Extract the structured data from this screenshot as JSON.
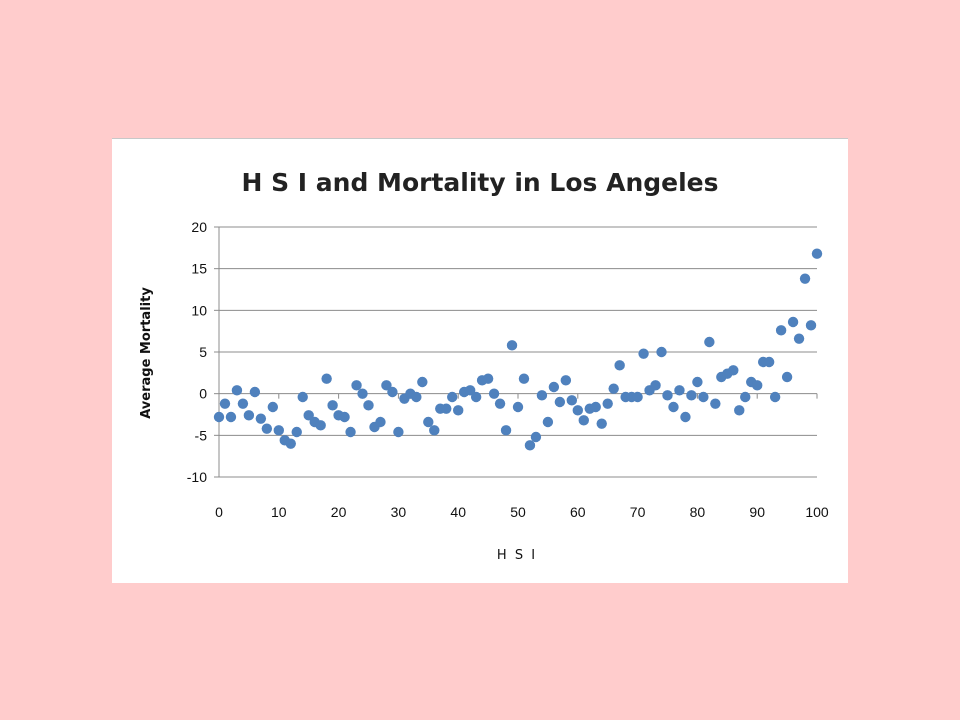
{
  "chart_data": {
    "type": "scatter",
    "title": "H S I and Mortality in Los Angeles",
    "xlabel": "H S I",
    "ylabel": "Average Mortality",
    "xlim": [
      0,
      100
    ],
    "ylim": [
      -10,
      20
    ],
    "xticks": [
      0,
      10,
      20,
      30,
      40,
      50,
      60,
      70,
      80,
      90,
      100
    ],
    "yticks": [
      -10,
      -5,
      0,
      5,
      10,
      15,
      20
    ],
    "grid": "horizontal",
    "legend": "none",
    "marker_color": "#4F81BD",
    "points": [
      [
        0,
        -2.8
      ],
      [
        1,
        -1.2
      ],
      [
        2,
        -2.8
      ],
      [
        3,
        0.4
      ],
      [
        4,
        -1.2
      ],
      [
        5,
        -2.6
      ],
      [
        6,
        0.2
      ],
      [
        7,
        -3.0
      ],
      [
        8,
        -4.2
      ],
      [
        9,
        -1.6
      ],
      [
        10,
        -4.4
      ],
      [
        11,
        -5.6
      ],
      [
        12,
        -6.0
      ],
      [
        13,
        -4.6
      ],
      [
        14,
        -0.4
      ],
      [
        15,
        -2.6
      ],
      [
        16,
        -3.4
      ],
      [
        17,
        -3.8
      ],
      [
        18,
        1.8
      ],
      [
        19,
        -1.4
      ],
      [
        20,
        -2.6
      ],
      [
        21,
        -2.8
      ],
      [
        22,
        -4.6
      ],
      [
        23,
        1.0
      ],
      [
        24,
        0.0
      ],
      [
        25,
        -1.4
      ],
      [
        26,
        -4.0
      ],
      [
        27,
        -3.4
      ],
      [
        28,
        1.0
      ],
      [
        29,
        0.2
      ],
      [
        30,
        -4.6
      ],
      [
        31,
        -0.6
      ],
      [
        32,
        0.0
      ],
      [
        33,
        -0.4
      ],
      [
        34,
        1.4
      ],
      [
        35,
        -3.4
      ],
      [
        36,
        -4.4
      ],
      [
        37,
        -1.8
      ],
      [
        38,
        -1.8
      ],
      [
        39,
        -0.4
      ],
      [
        40,
        -2.0
      ],
      [
        41,
        0.2
      ],
      [
        42,
        0.4
      ],
      [
        43,
        -0.4
      ],
      [
        44,
        1.6
      ],
      [
        45,
        1.8
      ],
      [
        46,
        0.0
      ],
      [
        47,
        -1.2
      ],
      [
        48,
        -4.4
      ],
      [
        49,
        5.8
      ],
      [
        50,
        -1.6
      ],
      [
        51,
        1.8
      ],
      [
        52,
        -6.2
      ],
      [
        53,
        -5.2
      ],
      [
        54,
        -0.2
      ],
      [
        55,
        -3.4
      ],
      [
        56,
        0.8
      ],
      [
        57,
        -1.0
      ],
      [
        58,
        1.6
      ],
      [
        59,
        -0.8
      ],
      [
        60,
        -2.0
      ],
      [
        61,
        -3.2
      ],
      [
        62,
        -1.8
      ],
      [
        63,
        -1.6
      ],
      [
        64,
        -3.6
      ],
      [
        65,
        -1.2
      ],
      [
        66,
        0.6
      ],
      [
        67,
        3.4
      ],
      [
        68,
        -0.4
      ],
      [
        69,
        -0.4
      ],
      [
        70,
        -0.4
      ],
      [
        71,
        4.8
      ],
      [
        72,
        0.4
      ],
      [
        73,
        1.0
      ],
      [
        74,
        5.0
      ],
      [
        75,
        -0.2
      ],
      [
        76,
        -1.6
      ],
      [
        77,
        0.4
      ],
      [
        78,
        -2.8
      ],
      [
        79,
        -0.2
      ],
      [
        80,
        1.4
      ],
      [
        81,
        -0.4
      ],
      [
        82,
        6.2
      ],
      [
        83,
        -1.2
      ],
      [
        84,
        2.0
      ],
      [
        85,
        2.4
      ],
      [
        86,
        2.8
      ],
      [
        87,
        -2.0
      ],
      [
        88,
        -0.4
      ],
      [
        89,
        1.4
      ],
      [
        90,
        1.0
      ],
      [
        91,
        3.8
      ],
      [
        92,
        3.8
      ],
      [
        93,
        -0.4
      ],
      [
        94,
        7.6
      ],
      [
        95,
        2.0
      ],
      [
        96,
        8.6
      ],
      [
        97,
        6.6
      ],
      [
        98,
        13.8
      ],
      [
        99,
        8.2
      ],
      [
        100,
        16.8
      ]
    ]
  }
}
